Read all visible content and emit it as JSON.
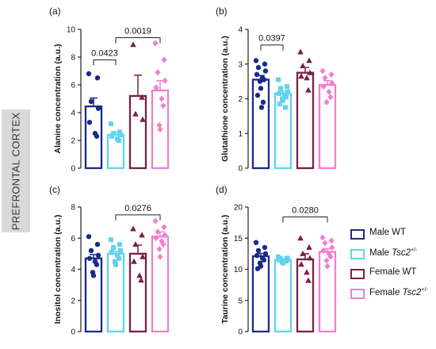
{
  "side_label": "PREFRONTAL CORTEX",
  "legend": [
    {
      "prefix": "Male ",
      "gene": "",
      "sup": "",
      "color": "#1a2a8a"
    },
    {
      "prefix": "Male ",
      "gene": "Tsc2",
      "sup": "+/-",
      "color": "#5fd3f0"
    },
    {
      "prefix": "Female ",
      "gene": "",
      "sup": "",
      "color": "#7a1f45"
    },
    {
      "prefix": "Female ",
      "gene": "Tsc2",
      "sup": "+/-",
      "color": "#f07fd0"
    }
  ],
  "legend_wt": "WT",
  "chart_data": [
    {
      "type": "bar",
      "panel": "(a)",
      "ylabel": "Alanine concentration (a.u.)",
      "ylim": [
        0,
        10
      ],
      "yticks": [
        0,
        2,
        4,
        6,
        8,
        10
      ],
      "groups": [
        {
          "mean": 4.45,
          "sem": 0.6,
          "points": [
            6.8,
            6.5,
            4.8,
            4.3,
            3.3,
            2.5,
            2.3
          ],
          "marker": "circle"
        },
        {
          "mean": 2.4,
          "sem": 0.2,
          "points": [
            3.2,
            2.6,
            2.5,
            2.4,
            2.3,
            2.1,
            2.0
          ],
          "marker": "square"
        },
        {
          "mean": 5.2,
          "sem": 1.5,
          "points": [
            8.9,
            5.1,
            3.9,
            3.5
          ],
          "marker": "triangle"
        },
        {
          "mean": 5.6,
          "sem": 0.7,
          "points": [
            9.0,
            7.8,
            6.9,
            6.3,
            5.8,
            5.0,
            4.5,
            3.1,
            2.8
          ],
          "marker": "diamond"
        }
      ],
      "comparisons": [
        {
          "between": [
            0,
            1
          ],
          "label": "0.0423",
          "y": 7.8
        },
        {
          "between": [
            1,
            3
          ],
          "label": "0.0019",
          "y": 9.4
        }
      ]
    },
    {
      "type": "bar",
      "panel": "(b)",
      "ylabel": "Glutathione concentration (a.u.)",
      "ylim": [
        0,
        4
      ],
      "yticks": [
        0,
        1,
        2,
        3,
        4
      ],
      "groups": [
        {
          "mean": 2.55,
          "sem": 0.12,
          "points": [
            3.1,
            3.0,
            2.9,
            2.8,
            2.7,
            2.6,
            2.55,
            2.5,
            2.3,
            2.1,
            1.9,
            1.75
          ],
          "marker": "circle"
        },
        {
          "mean": 2.15,
          "sem": 0.07,
          "points": [
            2.55,
            2.35,
            2.3,
            2.2,
            2.15,
            2.1,
            2.05,
            2.0,
            1.95,
            1.85,
            1.75
          ],
          "marker": "square"
        },
        {
          "mean": 2.75,
          "sem": 0.15,
          "points": [
            3.35,
            3.1,
            2.95,
            2.75,
            2.65,
            2.6,
            2.25
          ],
          "marker": "triangle"
        },
        {
          "mean": 2.4,
          "sem": 0.12,
          "points": [
            2.8,
            2.7,
            2.6,
            2.45,
            2.35,
            2.2,
            2.05,
            1.9
          ],
          "marker": "diamond"
        }
      ],
      "comparisons": [
        {
          "between": [
            0,
            1
          ],
          "label": "0.0397",
          "y": 3.55
        }
      ]
    },
    {
      "type": "bar",
      "panel": "(c)",
      "ylabel": "Inositol concentration (a.u.)",
      "ylim": [
        0,
        8
      ],
      "yticks": [
        0,
        2,
        4,
        6,
        8
      ],
      "groups": [
        {
          "mean": 4.7,
          "sem": 0.25,
          "points": [
            6.1,
            5.6,
            5.2,
            4.9,
            4.7,
            4.5,
            4.3,
            3.8,
            3.6
          ],
          "marker": "circle"
        },
        {
          "mean": 5.0,
          "sem": 0.15,
          "points": [
            5.9,
            5.6,
            5.4,
            5.2,
            5.1,
            4.9,
            4.7,
            4.5,
            4.3
          ],
          "marker": "square"
        },
        {
          "mean": 5.0,
          "sem": 0.55,
          "points": [
            6.6,
            6.2,
            5.6,
            4.8,
            4.5,
            3.6,
            3.3
          ],
          "marker": "triangle"
        },
        {
          "mean": 6.1,
          "sem": 0.3,
          "points": [
            7.1,
            6.7,
            6.4,
            6.2,
            6.0,
            5.8,
            5.6,
            5.3,
            4.8
          ],
          "marker": "diamond"
        }
      ],
      "comparisons": [
        {
          "between": [
            1,
            3
          ],
          "label": "0.0276",
          "y": 7.5
        }
      ]
    },
    {
      "type": "bar",
      "panel": "(d)",
      "ylabel": "Taurine concentration (a.u.)",
      "ylim": [
        0,
        20
      ],
      "yticks": [
        0,
        5,
        10,
        15,
        20
      ],
      "groups": [
        {
          "mean": 12.1,
          "sem": 0.45,
          "points": [
            14.3,
            13.5,
            13.0,
            12.5,
            12.2,
            11.8,
            11.5,
            11.0,
            10.5,
            10.1
          ],
          "marker": "circle"
        },
        {
          "mean": 11.5,
          "sem": 0.15,
          "points": [
            12.0,
            11.8,
            11.7,
            11.6,
            11.5,
            11.4,
            11.3,
            11.2,
            11.0
          ],
          "marker": "square"
        },
        {
          "mean": 11.6,
          "sem": 0.9,
          "points": [
            15.0,
            13.5,
            12.5,
            11.8,
            10.8,
            9.5,
            8.2
          ],
          "marker": "triangle"
        },
        {
          "mean": 12.8,
          "sem": 0.5,
          "points": [
            15.1,
            14.6,
            14.2,
            13.5,
            13.0,
            12.5,
            12.0,
            11.4,
            10.5
          ],
          "marker": "diamond"
        }
      ],
      "comparisons": [
        {
          "between": [
            1,
            3
          ],
          "label": "0.0280",
          "y": 18.4
        }
      ]
    }
  ]
}
